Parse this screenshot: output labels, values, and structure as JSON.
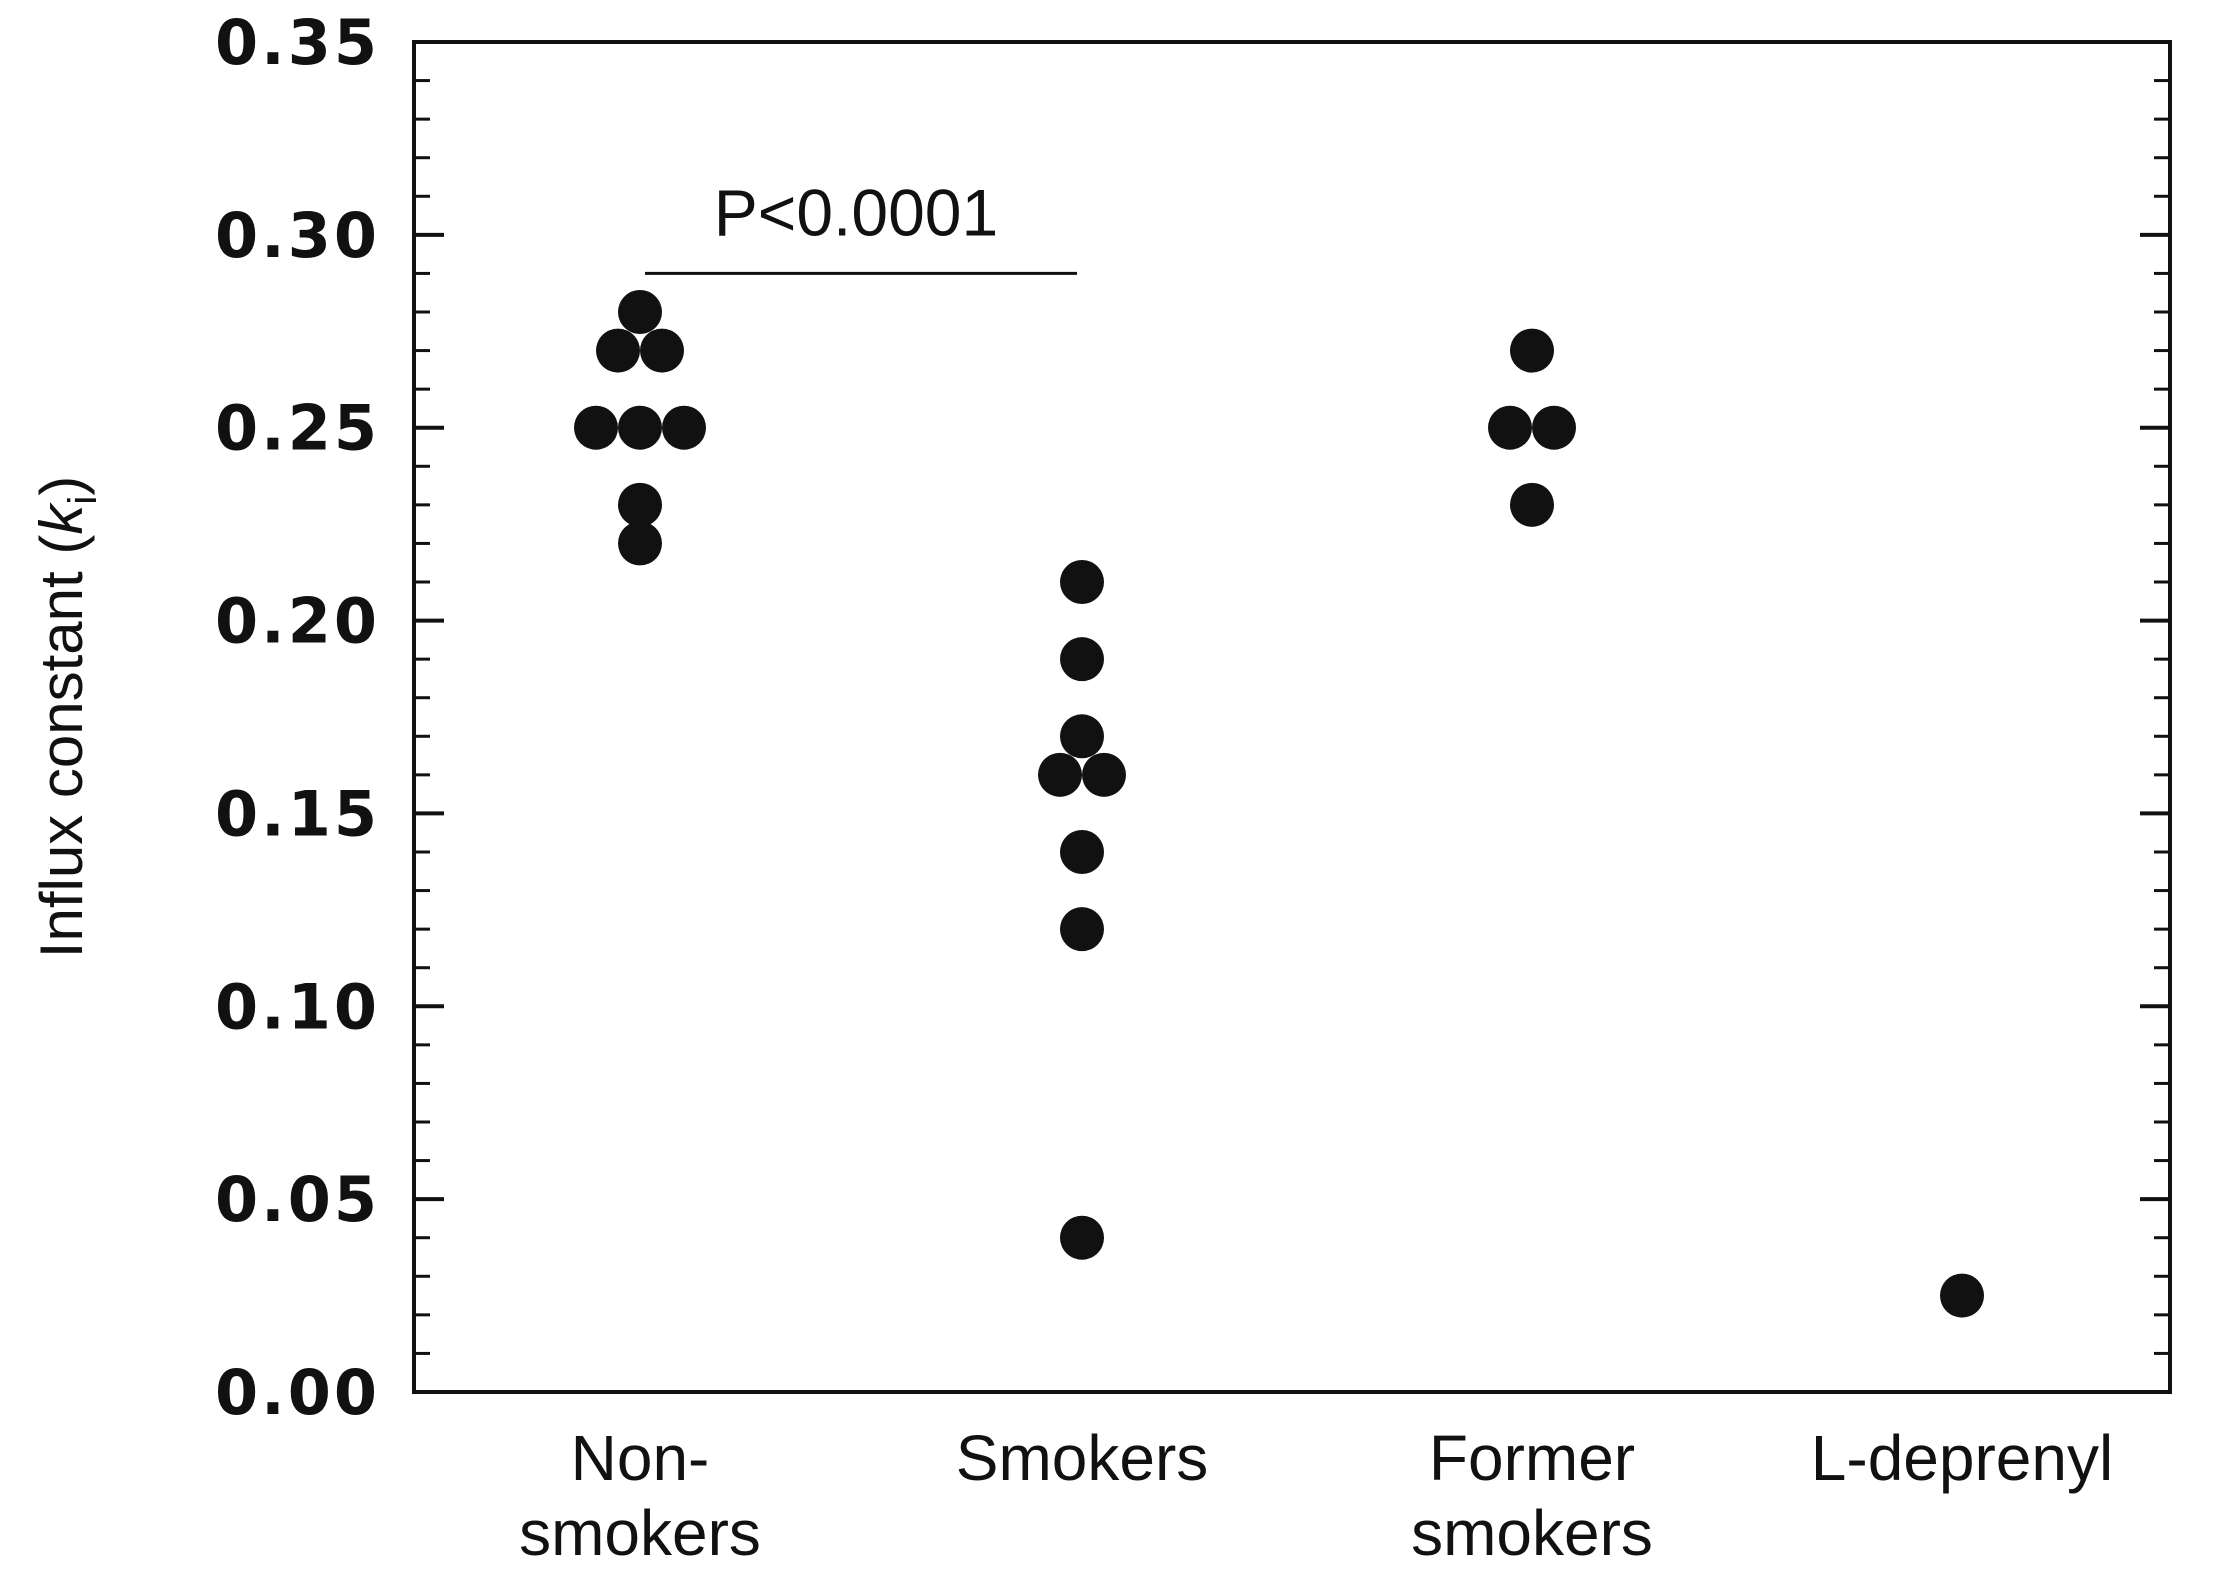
{
  "chart_data": {
    "type": "scatter",
    "ylabel": "Influx constant (",
    "ylabel_italic": "k",
    "ylabel_subscript": "i",
    "ylabel_suffix": ")",
    "ylim": [
      0,
      0.35
    ],
    "yticks": [
      "0.00",
      "0.05",
      "0.10",
      "0.15",
      "0.20",
      "0.25",
      "0.30",
      "0.35"
    ],
    "categories": [
      {
        "lines": [
          "Non-",
          "smokers"
        ]
      },
      {
        "lines": [
          "Smokers"
        ]
      },
      {
        "lines": [
          "Former",
          "smokers"
        ]
      },
      {
        "lines": [
          "L-deprenyl"
        ]
      }
    ],
    "series": [
      {
        "values": [
          0.28,
          0.27,
          0.27,
          0.25,
          0.25,
          0.25,
          0.23,
          0.22
        ]
      },
      {
        "values": [
          0.21,
          0.19,
          0.17,
          0.16,
          0.16,
          0.14,
          0.12,
          0.04
        ]
      },
      {
        "values": [
          0.27,
          0.25,
          0.25,
          0.23
        ]
      },
      {
        "values": [
          0.025
        ]
      }
    ],
    "annotation": {
      "text": "P<0.0001",
      "from_category": 0,
      "to_category": 1,
      "y": 0.29
    },
    "grid": false,
    "marker_color": "#111111"
  }
}
